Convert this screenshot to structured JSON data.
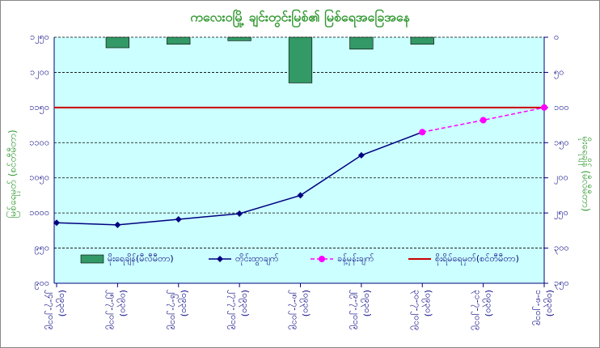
{
  "chart_data": {
    "type": "line",
    "title": "ကလေးဝမြို့ ချင်းတွင်းမြစ်၏ မြစ်ရေအခြေအနေ",
    "y_label": "မြစ်ရေမှတ် (စင်တီမီတာ)",
    "y2_label": "မိုးရေချိန် (မီလီမီတာ)",
    "categories": [
      [
        "၂၄-၇-၂၀၁၉",
        "(၀၉၃၀)"
      ],
      [
        "၂၅-၇-၂၀၁၉",
        "(၀၉၃၀)"
      ],
      [
        "၂၆-၇-၂၀၁၉",
        "(၀၉၃၀)"
      ],
      [
        "၂၇-၇-၂၀၁၉",
        "(၀၉၃၀)"
      ],
      [
        "၂၈-၇-၂၀၁၉",
        "(၀၉၃၀)"
      ],
      [
        "၂၉-၇-၂၀၁၉",
        "(၀၉၃၀)"
      ],
      [
        "၃၀-၇-၂၀၁၉",
        "(၀၉၃၀)"
      ],
      [
        "၃၁-၇-၂၀၁၉",
        "(၀၉၃၀)"
      ],
      [
        "၁-၈-၂၀၁၉",
        "(၀၉၃၀)"
      ]
    ],
    "series": [
      {
        "name": "မိုးရေချိန်(မီလီမီတာ)",
        "kind": "bar",
        "axis": "y2",
        "color": "#339966",
        "values": [
          null,
          15,
          10,
          5,
          65,
          17,
          10,
          null,
          null
        ]
      },
      {
        "name": "တိုင်းထွာချက်",
        "kind": "line",
        "color": "#000080",
        "marker": "diamond",
        "dash": false,
        "values": [
          986,
          983,
          991,
          999,
          1025,
          1082,
          1115,
          null,
          null
        ]
      },
      {
        "name": "ခန့်မှန်းချက်",
        "kind": "line",
        "color": "#ff00ff",
        "marker": "circle",
        "dash": true,
        "values": [
          null,
          null,
          null,
          null,
          null,
          null,
          1115,
          1132,
          1150
        ]
      }
    ],
    "danger_level": {
      "name": "စိုးရိမ်ရေမှတ်(စင်တီမီတာ)",
      "value": 1150,
      "color": "#cc0000"
    },
    "ylim": [
      900,
      1250
    ],
    "yticks": [
      {
        "value": 900,
        "label": "၉၀၀"
      },
      {
        "value": 950,
        "label": "၉၅၀"
      },
      {
        "value": 1000,
        "label": "၁၀၀၀"
      },
      {
        "value": 1050,
        "label": "၁၀၅၀"
      },
      {
        "value": 1100,
        "label": "၁၁၀၀"
      },
      {
        "value": 1150,
        "label": "၁၁၅၀"
      },
      {
        "value": 1200,
        "label": "၁၂၀၀"
      },
      {
        "value": 1250,
        "label": "၁၂၅၀"
      }
    ],
    "y2lim": [
      350,
      0
    ],
    "y2ticks": [
      {
        "value": 0,
        "label": "၀"
      },
      {
        "value": 50,
        "label": "၅၀"
      },
      {
        "value": 100,
        "label": "၁၀၀"
      },
      {
        "value": 150,
        "label": "၁၅၀"
      },
      {
        "value": 200,
        "label": "၂၀၀"
      },
      {
        "value": 250,
        "label": "၂၅၀"
      },
      {
        "value": 300,
        "label": "၃၀၀"
      },
      {
        "value": 350,
        "label": "၃၅၀"
      }
    ],
    "grid": true
  }
}
